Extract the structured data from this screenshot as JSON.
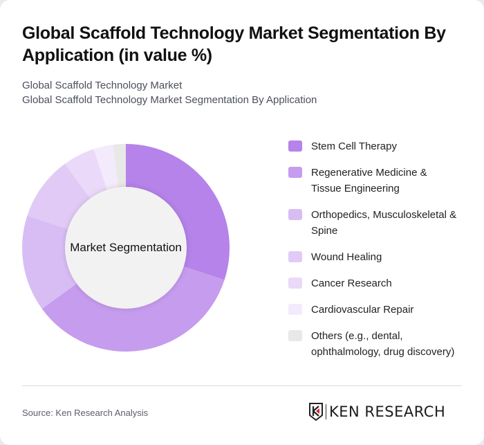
{
  "header": {
    "title": "Global Scaffold Technology Market Segmentation By Application (in value %)",
    "subtitle_line1": "Global Scaffold Technology Market",
    "subtitle_line2": "Global Scaffold Technology Market Segmentation By Application"
  },
  "chart": {
    "center_label": "Market Segmentation"
  },
  "legend": [
    {
      "label": "Stem Cell Therapy",
      "color": "#b583e9"
    },
    {
      "label": "Regenerative Medicine & Tissue Engineering",
      "color": "#c69cee"
    },
    {
      "label": "Orthopedics, Musculoskeletal & Spine",
      "color": "#d8bdf5"
    },
    {
      "label": "Wound Healing",
      "color": "#e1cbf6"
    },
    {
      "label": "Cancer Research",
      "color": "#ead9f9"
    },
    {
      "label": "Cardiovascular Repair",
      "color": "#f3ebfc"
    },
    {
      "label": "Others (e.g., dental, ophthalmology, drug discovery)",
      "color": "#e8e8e8"
    }
  ],
  "footer": {
    "source": "Source: Ken Research Analysis",
    "logo_text": "KEN RESEARCH",
    "logo_icon": "ken-research-k-shield-icon"
  },
  "chart_data": {
    "type": "pie",
    "variant": "donut",
    "title": "Global Scaffold Technology Market Segmentation By Application (in value %)",
    "center_label": "Market Segmentation",
    "categories": [
      "Stem Cell Therapy",
      "Regenerative Medicine & Tissue Engineering",
      "Orthopedics, Musculoskeletal & Spine",
      "Wound Healing",
      "Cancer Research",
      "Cardiovascular Repair",
      "Others (e.g., dental, ophthalmology, drug discovery)"
    ],
    "values": [
      30,
      35,
      15,
      10,
      5,
      3,
      2
    ],
    "colors": [
      "#b583e9",
      "#c69cee",
      "#d8bdf5",
      "#e1cbf6",
      "#ead9f9",
      "#f3ebfc",
      "#e8e8e8"
    ],
    "unit": "%",
    "start_angle": "12 o'clock, clockwise",
    "legend_position": "right"
  }
}
